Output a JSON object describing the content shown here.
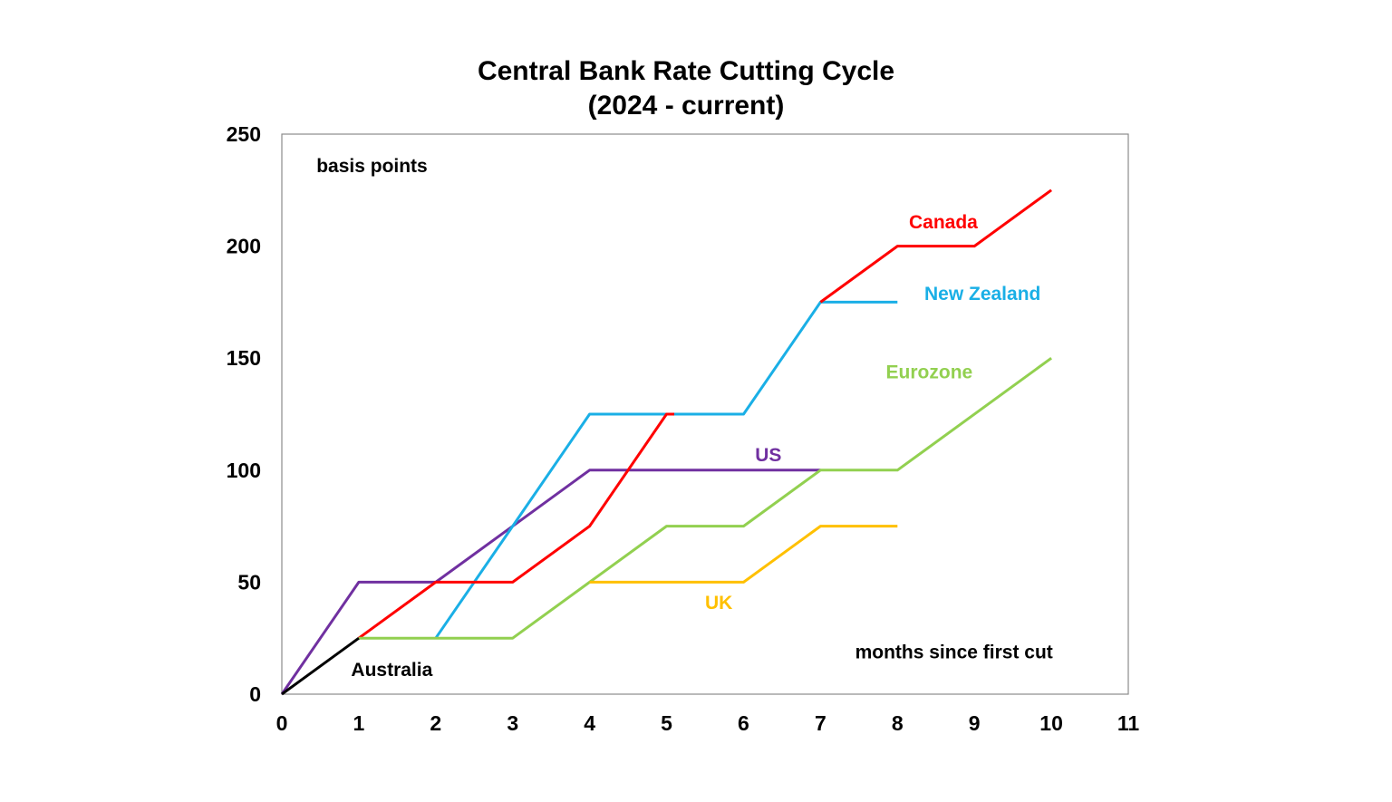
{
  "chart_data": {
    "type": "line",
    "title": [
      "Central Bank Rate Cutting Cycle",
      "(2024 - current)"
    ],
    "ylabel": "basis points",
    "xlabel": "months since first cut",
    "xlim": [
      0,
      11
    ],
    "ylim": [
      0,
      250
    ],
    "x_ticks": [
      0,
      1,
      2,
      3,
      4,
      5,
      6,
      7,
      8,
      9,
      10,
      11
    ],
    "y_ticks": [
      0,
      50,
      100,
      150,
      200,
      250
    ],
    "grid": false,
    "legend": "inline labels",
    "series": [
      {
        "name": "US",
        "color": "#7030A0",
        "points": [
          [
            0,
            0
          ],
          [
            1,
            50
          ],
          [
            2,
            50
          ],
          [
            4,
            100
          ],
          [
            7,
            100
          ]
        ]
      },
      {
        "name": "New Zealand",
        "color": "#1AAFE6",
        "points": [
          [
            2,
            25
          ],
          [
            3,
            75
          ],
          [
            4,
            125
          ],
          [
            6,
            125
          ],
          [
            7,
            175
          ],
          [
            8,
            175
          ]
        ]
      },
      {
        "name": "Canada",
        "color": "#FF0000",
        "points": [
          [
            1,
            25
          ],
          [
            2,
            50
          ],
          [
            3,
            50
          ],
          [
            4,
            75
          ],
          [
            5,
            125
          ],
          [
            5.1,
            125
          ]
        ]
      },
      {
        "name": "Canada",
        "color": "#FF0000",
        "points": [
          [
            7,
            175
          ],
          [
            8,
            200
          ],
          [
            9,
            200
          ],
          [
            10,
            225
          ]
        ]
      },
      {
        "name": "Eurozone",
        "color": "#92D050",
        "points": [
          [
            1,
            25
          ],
          [
            3,
            25
          ],
          [
            4,
            50
          ],
          [
            5,
            75
          ],
          [
            6,
            75
          ],
          [
            7,
            100
          ],
          [
            8,
            100
          ],
          [
            10,
            150
          ]
        ]
      },
      {
        "name": "UK",
        "color": "#FFC000",
        "points": [
          [
            4,
            50
          ],
          [
            6,
            50
          ],
          [
            7,
            75
          ],
          [
            8,
            75
          ]
        ]
      },
      {
        "name": "Australia",
        "color": "#000000",
        "points": [
          [
            0,
            0
          ],
          [
            1,
            25
          ]
        ]
      }
    ],
    "labels": [
      {
        "text": "Canada",
        "color": "#FF0000",
        "x": 8.15,
        "y": 208
      },
      {
        "text": "New Zealand",
        "color": "#1AAFE6",
        "x": 8.35,
        "y": 176
      },
      {
        "text": "Eurozone",
        "color": "#92D050",
        "x": 7.85,
        "y": 141
      },
      {
        "text": "US",
        "color": "#7030A0",
        "x": 6.15,
        "y": 104
      },
      {
        "text": "UK",
        "color": "#FFC000",
        "x": 5.5,
        "y": 38
      },
      {
        "text": "Australia",
        "color": "#000000",
        "x": 0.9,
        "y": 8
      },
      {
        "text": "basis points",
        "color": "#000000",
        "x": 0.45,
        "y": 233
      },
      {
        "text": "months since first cut",
        "color": "#000000",
        "x": 7.45,
        "y": 16
      }
    ]
  }
}
